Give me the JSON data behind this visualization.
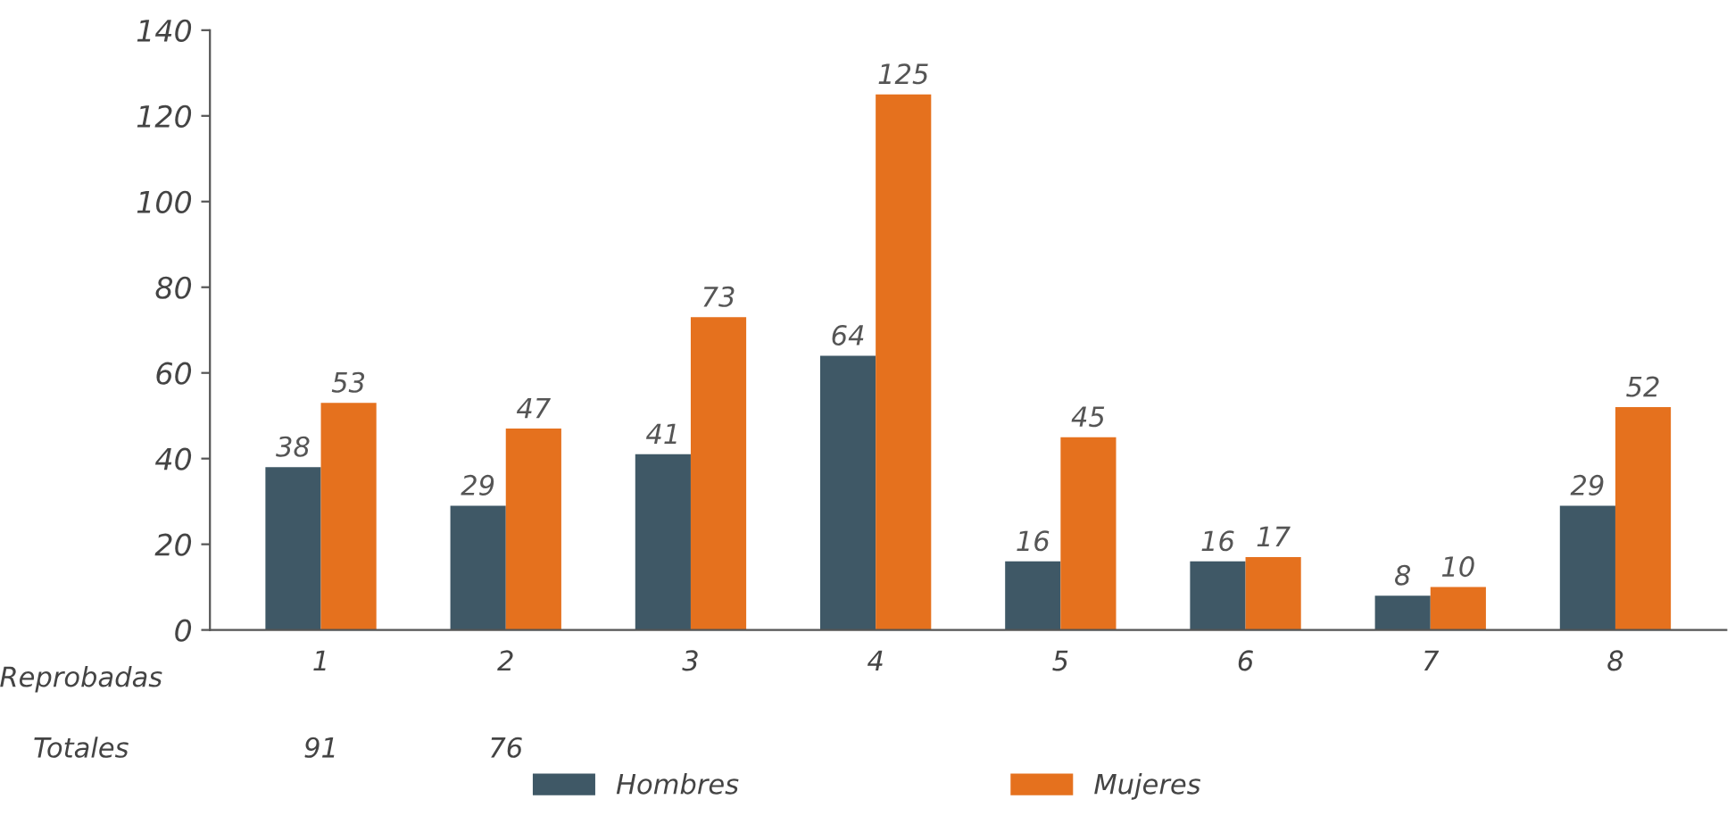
{
  "chart_data": {
    "type": "bar",
    "xlabel": "Reprobadas",
    "categories": [
      "1",
      "2",
      "3",
      "4",
      "5",
      "6",
      "7",
      "8"
    ],
    "series": [
      {
        "name": "Hombres",
        "color": "#3f5866",
        "values": [
          38,
          29,
          41,
          64,
          16,
          16,
          8,
          29
        ]
      },
      {
        "name": "Mujeres",
        "color": "#e5711e",
        "values": [
          53,
          47,
          73,
          125,
          45,
          17,
          10,
          52
        ]
      }
    ],
    "ylim": [
      0,
      140
    ],
    "yticks": [
      0,
      20,
      40,
      60,
      80,
      100,
      120,
      140
    ],
    "data_labels": true,
    "grid": false,
    "legend": "bottom",
    "annotations": [
      "Totales",
      "91",
      "76"
    ]
  }
}
